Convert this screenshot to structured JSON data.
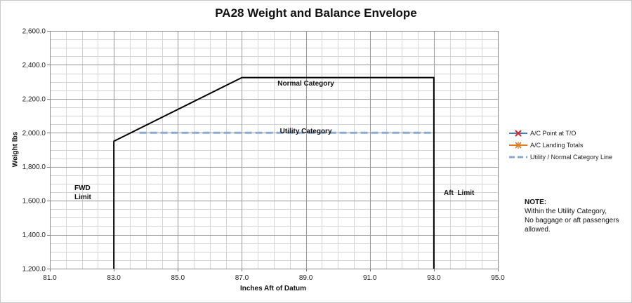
{
  "chart_data": {
    "type": "line",
    "title": "PA28 Weight and Balance Envelope",
    "xlabel": "Inches Aft of Datum",
    "ylabel": "Weight lbs",
    "xlim": [
      81.0,
      95.0
    ],
    "ylim": [
      1200.0,
      2600.0
    ],
    "x_ticks": [
      81.0,
      83.0,
      85.0,
      87.0,
      89.0,
      91.0,
      93.0,
      95.0
    ],
    "x_tick_labels": [
      "81.0",
      "83.0",
      "85.0",
      "87.0",
      "89.0",
      "91.0",
      "93.0",
      "95.0"
    ],
    "y_ticks": [
      1200.0,
      1400.0,
      1600.0,
      1800.0,
      2000.0,
      2200.0,
      2400.0,
      2600.0
    ],
    "y_tick_labels": [
      "1,200.0",
      "1,400.0",
      "1,600.0",
      "1,800.0",
      "2,000.0",
      "2,200.0",
      "2,400.0",
      "2,600.0"
    ],
    "x_minor_step": 0.5,
    "y_minor_step": 50,
    "grid": true,
    "legend_position": "right",
    "envelope": {
      "x": [
        83.0,
        83.0,
        87.0,
        93.0,
        93.0
      ],
      "y": [
        1200,
        1950,
        2325,
        2325,
        1200
      ],
      "color": "#000000"
    },
    "series": [
      {
        "name": "A/C Point at T/O",
        "x": [],
        "y": [],
        "color": "#4a7fb5",
        "marker_color": "#d9262c",
        "marker": "x"
      },
      {
        "name": "A/C Landing Totals",
        "x": [],
        "y": [],
        "color": "#e07b24",
        "marker_color": "#e07b24",
        "marker": "x"
      },
      {
        "name": "Utility / Normal Category Line",
        "x": [
          83.8,
          93.0
        ],
        "y": [
          2000,
          2000
        ],
        "color": "#8aaad6",
        "dashed": true
      }
    ],
    "annotations": {
      "normal_category": {
        "text": "Normal Category",
        "x": 89.0,
        "y": 2325
      },
      "utility_category": {
        "text": "Utility Category",
        "x": 89.0,
        "y": 2000
      },
      "fwd_limit": {
        "line1": "FWD",
        "line2": "Limit"
      },
      "aft_limit": "Aft  Limit"
    },
    "note": {
      "title": "NOTE:",
      "lines": [
        "Within the Utility Category,",
        "No baggage or aft passengers",
        "allowed."
      ]
    }
  }
}
